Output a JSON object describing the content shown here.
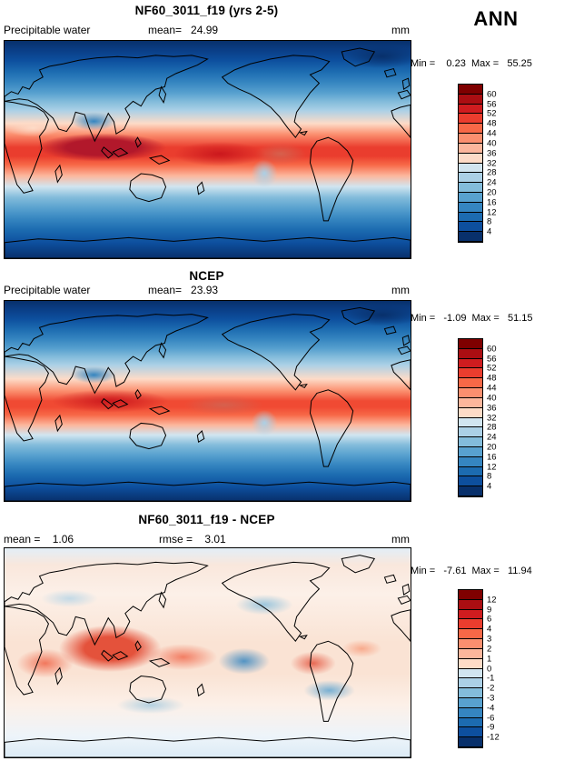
{
  "corner_label": "ANN",
  "chart_data": [
    {
      "type": "heatmap",
      "title": "NF60_3011_f19 (yrs 2-5)",
      "variable": "Precipitable water",
      "units": "mm",
      "stats": {
        "mean": 24.99,
        "min": 0.23,
        "max": 55.25
      },
      "labels": {
        "mean": "mean=   24.99",
        "minmax": "Min =    0.23  Max =   55.25"
      },
      "colorbar": {
        "levels": [
          60,
          56,
          52,
          48,
          44,
          40,
          36,
          32,
          28,
          24,
          20,
          16,
          12,
          8,
          4
        ],
        "colors": [
          "#7f0000",
          "#ab0e12",
          "#cf1c1f",
          "#ea3d2e",
          "#f76847",
          "#fb8f6f",
          "#fcb69c",
          "#fddbc7",
          "#d1e5f0",
          "#abd0e6",
          "#83bcdb",
          "#58a1cf",
          "#3585c0",
          "#1c6bb0",
          "#0d4f9e",
          "#08306b"
        ]
      }
    },
    {
      "type": "heatmap",
      "title": "NCEP",
      "variable": "Precipitable water",
      "units": "mm",
      "stats": {
        "mean": 23.93,
        "min": -1.09,
        "max": 51.15
      },
      "labels": {
        "mean": "mean=   23.93",
        "minmax": "Min =   -1.09  Max =   51.15"
      },
      "colorbar": {
        "levels": [
          60,
          56,
          52,
          48,
          44,
          40,
          36,
          32,
          28,
          24,
          20,
          16,
          12,
          8,
          4
        ],
        "colors": [
          "#7f0000",
          "#ab0e12",
          "#cf1c1f",
          "#ea3d2e",
          "#f76847",
          "#fb8f6f",
          "#fcb69c",
          "#fddbc7",
          "#d1e5f0",
          "#abd0e6",
          "#83bcdb",
          "#58a1cf",
          "#3585c0",
          "#1c6bb0",
          "#0d4f9e",
          "#08306b"
        ]
      }
    },
    {
      "type": "heatmap",
      "title": "NF60_3011_f19 - NCEP",
      "units": "mm",
      "stats": {
        "mean": 1.06,
        "rmse": 3.01,
        "min": -7.61,
        "max": 11.94
      },
      "labels": {
        "mean": "mean =    1.06",
        "rmse": "rmse =    3.01",
        "minmax": "Min =   -7.61  Max =   11.94"
      },
      "colorbar": {
        "levels": [
          12,
          9,
          6,
          4,
          3,
          2,
          1,
          0,
          -1,
          -2,
          -3,
          -4,
          -6,
          -9,
          -12
        ],
        "colors": [
          "#7f0000",
          "#ab0e12",
          "#cf1c1f",
          "#ea3d2e",
          "#f76847",
          "#fb8f6f",
          "#fcb69c",
          "#fddbc7",
          "#d1e5f0",
          "#abd0e6",
          "#83bcdb",
          "#58a1cf",
          "#3585c0",
          "#1c6bb0",
          "#0d4f9e",
          "#08306b"
        ]
      }
    }
  ]
}
